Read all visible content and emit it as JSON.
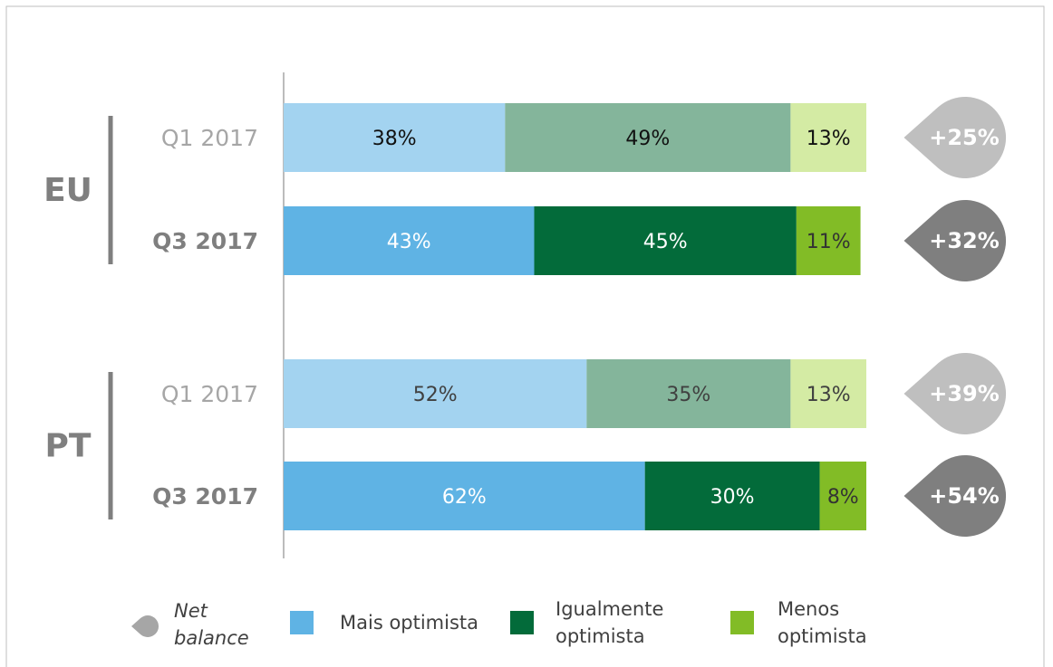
{
  "chart_data": {
    "type": "bar",
    "orientation": "horizontal",
    "stacked": true,
    "categories": [
      "Q1 2017",
      "Q3 2017",
      "Q1 2017",
      "Q3 2017"
    ],
    "groups": [
      "EU",
      "PT"
    ],
    "xlim": [
      0,
      100
    ],
    "series": [
      {
        "name": "Mais optimista",
        "color": "#5fb3e4",
        "colors": [
          "#a3d3f0",
          "#5fb3e4",
          "#a3d3f0",
          "#5fb3e4"
        ],
        "values": [
          38,
          43,
          52,
          62
        ],
        "value_labels": [
          "38%",
          "43%",
          "52%",
          "62%"
        ]
      },
      {
        "name": "Igualmente optimista",
        "color": "#036b3a",
        "colors": [
          "#84b59b",
          "#036b3a",
          "#84b59b",
          "#036b3a"
        ],
        "values": [
          49,
          45,
          35,
          30
        ],
        "value_labels": [
          "49%",
          "45%",
          "35%",
          "30%"
        ]
      },
      {
        "name": "Menos optimista",
        "color": "#82bc26",
        "colors": [
          "#d4eba4",
          "#82bc26",
          "#d4eba4",
          "#82bc26"
        ],
        "values": [
          13,
          11,
          13,
          8
        ],
        "value_labels": [
          "13%",
          "11%",
          "13%",
          "8%"
        ]
      }
    ],
    "net_balance": {
      "name": "Net balance",
      "color": "#a6a6a6",
      "colors": [
        "#bfbfbf",
        "#7f7f7f",
        "#bfbfbf",
        "#7f7f7f"
      ],
      "values": [
        25,
        32,
        39,
        54
      ],
      "value_labels": [
        "+25%",
        "+32%",
        "+39%",
        "+54%"
      ]
    }
  }
}
